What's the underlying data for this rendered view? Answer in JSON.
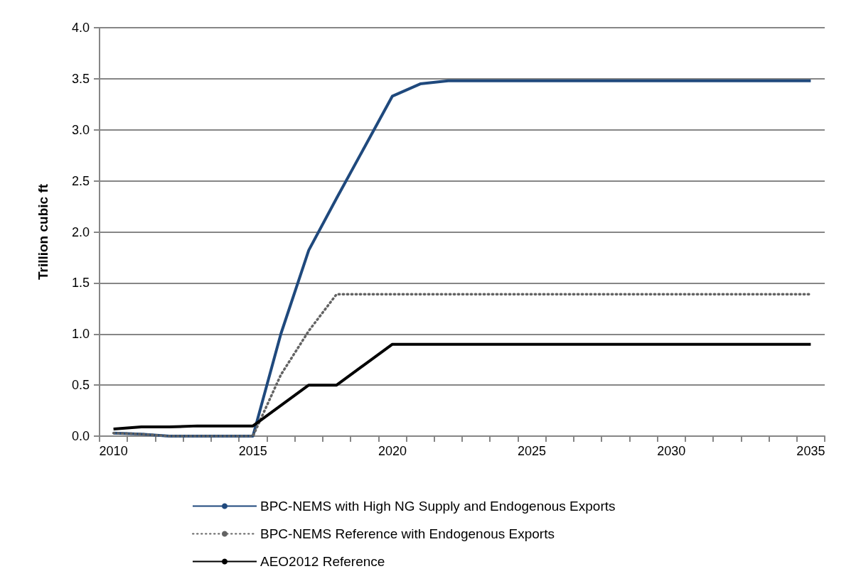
{
  "chart_data": {
    "type": "line",
    "ylabel": "Trillion cubic ft",
    "categories": [
      "2010",
      null,
      null,
      null,
      null,
      "2015",
      null,
      null,
      null,
      null,
      "2020",
      null,
      null,
      null,
      null,
      "2025",
      null,
      null,
      null,
      null,
      "2030",
      null,
      null,
      null,
      null,
      "2035"
    ],
    "series": [
      {
        "name": "BPC-NEMS with High NG Supply and Endogenous Exports",
        "color": "#1f497d",
        "line_style": "solid",
        "values": [
          0.03,
          0.02,
          0,
          0,
          0,
          0,
          1.0,
          1.82,
          2.33,
          2.83,
          3.33,
          3.45,
          3.48,
          3.48,
          3.48,
          3.48,
          3.48,
          3.48,
          3.48,
          3.48,
          3.48,
          3.48,
          3.48,
          3.48,
          3.48,
          3.48
        ]
      },
      {
        "name": "BPC-NEMS Reference with Endogenous Exports",
        "color": "#636363",
        "line_style": "dotted",
        "values": [
          0.03,
          0.02,
          0,
          0,
          0,
          0,
          0.6,
          1.03,
          1.39,
          1.39,
          1.39,
          1.39,
          1.39,
          1.39,
          1.39,
          1.39,
          1.39,
          1.39,
          1.39,
          1.39,
          1.39,
          1.39,
          1.39,
          1.39,
          1.39,
          1.39
        ]
      },
      {
        "name": "AEO2012 Reference",
        "color": "#000000",
        "line_style": "solid",
        "values": [
          0.07,
          0.09,
          0.09,
          0.1,
          0.1,
          0.1,
          0.3,
          0.5,
          0.5,
          0.7,
          0.9,
          0.9,
          0.9,
          0.9,
          0.9,
          0.9,
          0.9,
          0.9,
          0.9,
          0.9,
          0.9,
          0.9,
          0.9,
          0.9,
          0.9,
          0.9
        ]
      }
    ],
    "ylim": [
      0,
      4
    ],
    "yticks": [
      {
        "value": 0,
        "label": "0.0"
      },
      {
        "value": 0.5,
        "label": "0.5"
      },
      {
        "value": 1,
        "label": "1.0"
      },
      {
        "value": 1.5,
        "label": "1.5"
      },
      {
        "value": 2,
        "label": "2.0"
      },
      {
        "value": 2.5,
        "label": "2.5"
      },
      {
        "value": 3,
        "label": "3.0"
      },
      {
        "value": 3.5,
        "label": "3.5"
      },
      {
        "value": 4,
        "label": "4.0"
      }
    ],
    "grid": "y",
    "legend": "bottom",
    "marker": "none"
  }
}
